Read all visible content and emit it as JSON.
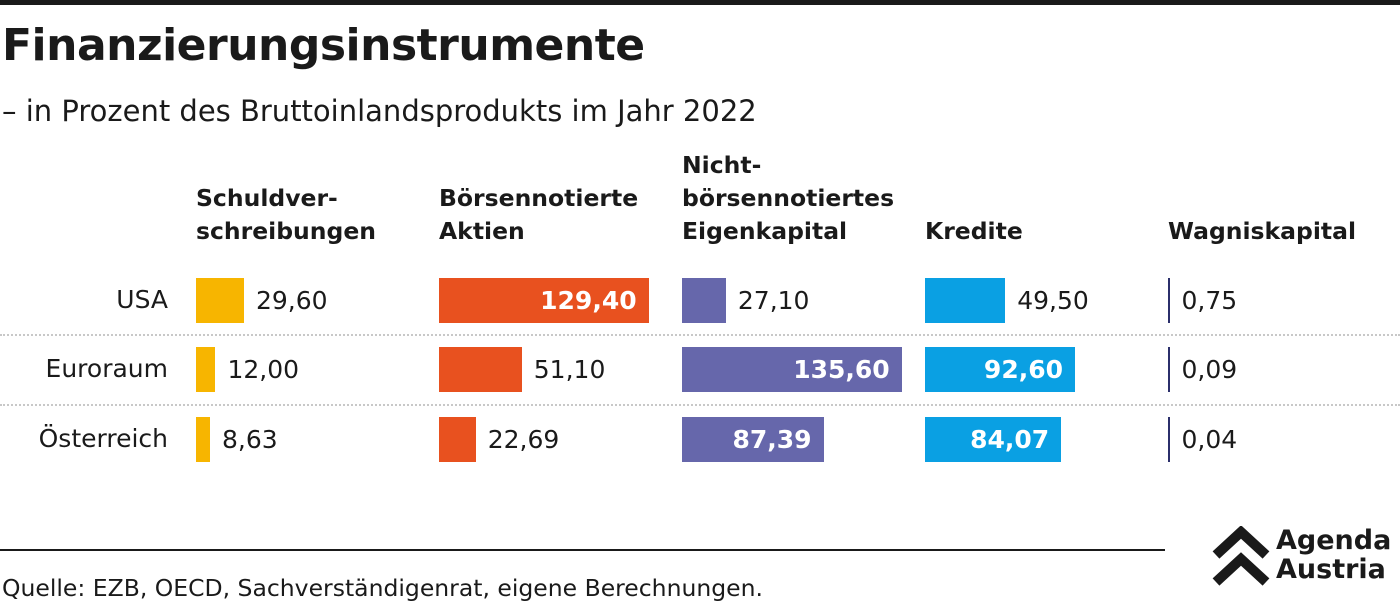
{
  "header": {
    "title": "Finanzierungsinstrumente",
    "subtitle": "– in Prozent des Bruttoinlandsprodukts im Jahr 2022"
  },
  "footer": {
    "source": "Quelle: EZB, OECD, Sachverständigenrat, eigene Berechnungen.",
    "logo_line1": "Agenda",
    "logo_line2": "Austria"
  },
  "colors": {
    "Schuldverschreibungen": "#f7b500",
    "Börsennotierte Aktien": "#e8511f",
    "Nicht-börsennotiertes Eigenkapital": "#6667ab",
    "Kredite": "#0aa0e3",
    "Wagniskapital": "#2b2f6b"
  },
  "chart_data": {
    "type": "bar",
    "orientation": "horizontal",
    "layout": "small-multiples",
    "categories": [
      "USA",
      "Euroraum",
      "Österreich"
    ],
    "series": [
      {
        "name": "Schuldverschreibungen",
        "header_lines": [
          "Schuldver-",
          "schreibungen"
        ],
        "values": [
          29.6,
          12.0,
          8.63
        ],
        "labels": [
          "29,60",
          "12,00",
          "8,63"
        ]
      },
      {
        "name": "Börsennotierte Aktien",
        "header_lines": [
          "Börsennotierte",
          "Aktien"
        ],
        "values": [
          129.4,
          51.1,
          22.69
        ],
        "labels": [
          "129,40",
          "51,10",
          "22,69"
        ]
      },
      {
        "name": "Nicht-börsennotiertes Eigenkapital",
        "header_lines": [
          "Nicht-",
          "börsennotiertes",
          "Eigenkapital"
        ],
        "values": [
          27.1,
          135.6,
          87.39
        ],
        "labels": [
          "27,10",
          "135,60",
          "87,39"
        ]
      },
      {
        "name": "Kredite",
        "header_lines": [
          "Kredite"
        ],
        "values": [
          49.5,
          92.6,
          84.07
        ],
        "labels": [
          "49,50",
          "92,60",
          "84,07"
        ]
      },
      {
        "name": "Wagniskapital",
        "header_lines": [
          "Wagniskapital"
        ],
        "values": [
          0.75,
          0.09,
          0.04
        ],
        "labels": [
          "0,75",
          "0,09",
          "0,04"
        ]
      }
    ],
    "unit": "Prozent des BIP",
    "grid": false,
    "legend": "none"
  }
}
